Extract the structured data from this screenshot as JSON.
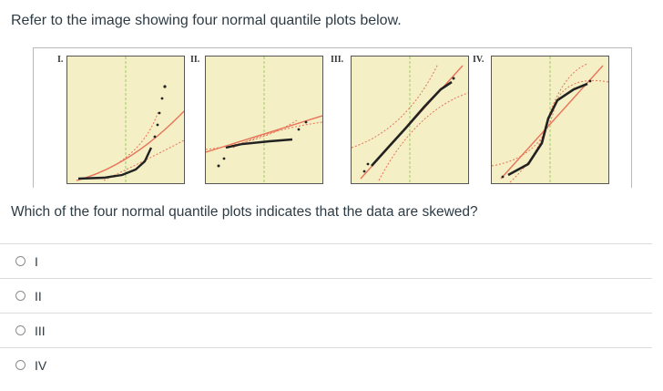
{
  "prompt": "Refer to the image showing four normal quantile plots below.",
  "figure": {
    "panels": [
      {
        "label": "I."
      },
      {
        "label": "II."
      },
      {
        "label": "III."
      },
      {
        "label": "IV."
      }
    ]
  },
  "question": "Which of the four normal quantile plots indicates that the data are skewed?",
  "choices": [
    {
      "label": "I"
    },
    {
      "label": "II"
    },
    {
      "label": "III"
    },
    {
      "label": "IV"
    }
  ],
  "colors": {
    "panel_bg": "#f4efc4",
    "fit_line": "#e8735a",
    "confidence_band": "#e8735a",
    "center_line": "#9ccc65",
    "points": "#222222"
  }
}
